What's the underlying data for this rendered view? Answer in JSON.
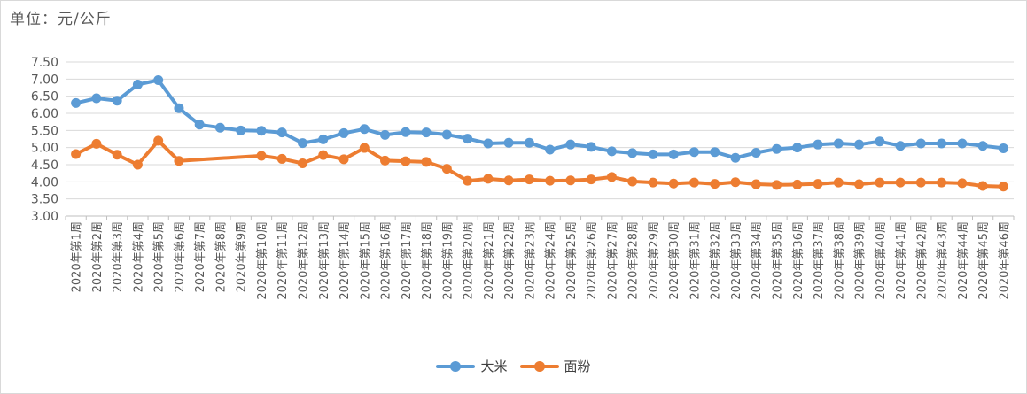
{
  "unit_label": "单位：元/公斤",
  "colors": {
    "dami": "#5b9bd5",
    "mianfen": "#ed7d31",
    "grid": "#d9d9d9",
    "axis": "#bfbfbf"
  },
  "chart_data": {
    "type": "line",
    "title": "",
    "ylabel": "",
    "xlabel": "",
    "ylim": [
      3.0,
      7.5
    ],
    "yticks": [
      "3.00",
      "3.50",
      "4.00",
      "4.50",
      "5.00",
      "5.50",
      "6.00",
      "6.50",
      "7.00",
      "7.50"
    ],
    "grid": true,
    "legend_position": "bottom",
    "categories": [
      "2020年第1周",
      "2020年第2周",
      "2020年第3周",
      "2020年第4周",
      "2020年第5周",
      "2020年第6周",
      "2020年第7周",
      "2020年第8周",
      "2020年第9周",
      "2020年第10周",
      "2020年第11周",
      "2020年第12周",
      "2020年第13周",
      "2020年第14周",
      "2020年第15周",
      "2020年第16周",
      "2020年第17周",
      "2020年第18周",
      "2020年第19周",
      "2020年第20周",
      "2020年第21周",
      "2020年第22周",
      "2020年第23周",
      "2020年第24周",
      "2020年第25周",
      "2020年第26周",
      "2020年第27周",
      "2020年第28周",
      "2020年第29周",
      "2020年第30周",
      "2020年第31周",
      "2020年第32周",
      "2020年第33周",
      "2020年第34周",
      "2020年第35周",
      "2020年第36周",
      "2020年第37周",
      "2020年第38周",
      "2020年第39周",
      "2020年第40周",
      "2020年第41周",
      "2020年第42周",
      "2020年第43周",
      "2020年第44周",
      "2020年第45周",
      "2020年第46周"
    ],
    "series": [
      {
        "name": "大米",
        "color": "#5b9bd5",
        "values": [
          6.3,
          6.44,
          6.37,
          6.84,
          6.97,
          6.15,
          5.67,
          5.58,
          5.5,
          5.49,
          5.44,
          5.13,
          5.24,
          5.42,
          5.54,
          5.37,
          5.45,
          5.44,
          5.38,
          5.26,
          5.12,
          5.14,
          5.14,
          4.94,
          5.09,
          5.02,
          4.89,
          4.84,
          4.8,
          4.8,
          4.87,
          4.87,
          4.7,
          4.85,
          4.96,
          5.0,
          5.09,
          5.12,
          5.09,
          5.18,
          5.05,
          5.12,
          5.12,
          5.12,
          5.05,
          4.98
        ]
      },
      {
        "name": "面粉",
        "color": "#ed7d31",
        "values": [
          4.81,
          5.11,
          4.79,
          4.5,
          5.2,
          4.61,
          null,
          null,
          null,
          4.76,
          4.67,
          4.54,
          4.78,
          4.66,
          4.99,
          4.62,
          4.6,
          4.58,
          4.38,
          4.03,
          4.09,
          4.04,
          4.07,
          4.03,
          4.04,
          4.07,
          4.14,
          4.01,
          3.98,
          3.95,
          3.98,
          3.94,
          3.99,
          3.93,
          3.91,
          3.92,
          3.94,
          3.98,
          3.93,
          3.98,
          3.98,
          3.98,
          3.98,
          3.96,
          3.88,
          3.86
        ]
      }
    ]
  }
}
